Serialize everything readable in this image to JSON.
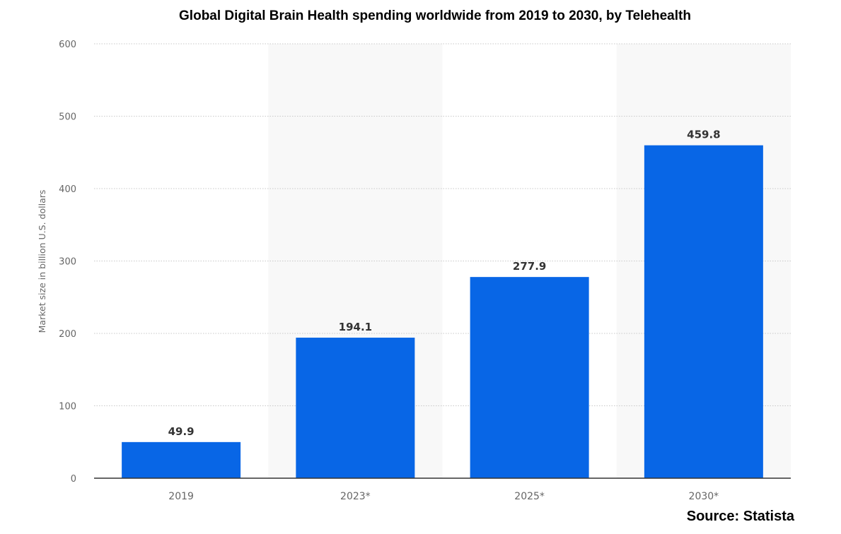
{
  "chart_data": {
    "type": "bar",
    "title": "Global Digital Brain Health spending worldwide from 2019 to 2030, by Telehealth",
    "categories": [
      "2019",
      "2023*",
      "2025*",
      "2030*"
    ],
    "values": [
      49.9,
      194.1,
      277.9,
      459.8
    ],
    "value_labels": [
      "49.9",
      "194.1",
      "277.9",
      "459.8"
    ],
    "xlabel": "",
    "ylabel": "Market size in billion U.S. dollars",
    "ylim": [
      0,
      600
    ],
    "yticks": [
      "0",
      "100",
      "200",
      "300",
      "400",
      "500",
      "600"
    ],
    "grid": true,
    "bar_color": "#0866e6",
    "source": "Source: Statista"
  }
}
